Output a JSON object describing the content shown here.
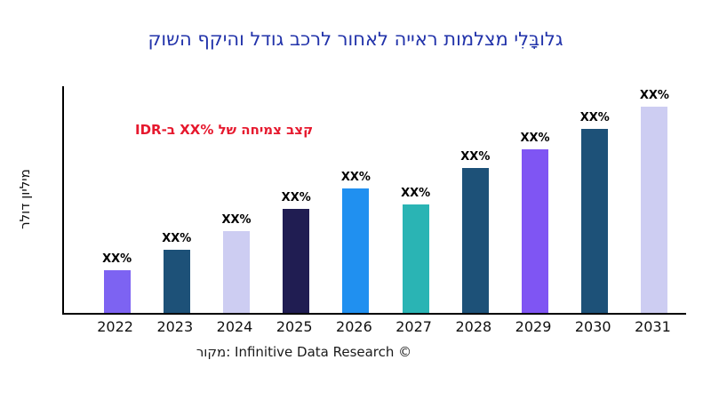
{
  "title": {
    "text": "גלובָּלִי מצלמות ראייה לאחור לרכב גודל והיקף השוק",
    "color": "#2233aa"
  },
  "annotation": {
    "text": "קצב צמיחה של %XX ב-IDR",
    "color": "#e6192e"
  },
  "y_axis_label": "מיליון דולר",
  "caption": "מקור: Infinitive Data Research ©",
  "chart_data": {
    "type": "bar",
    "title": "גלובָּלִי מצלמות ראייה לאחור לרכב גודל והיקף השוק",
    "xlabel": "",
    "ylabel": "מיליון דולר",
    "categories": [
      "2022",
      "2023",
      "2024",
      "2025",
      "2026",
      "2027",
      "2028",
      "2029",
      "2030",
      "2031"
    ],
    "values": [
      19,
      28,
      36,
      46,
      55,
      48,
      64,
      72,
      81,
      91
    ],
    "value_labels": [
      "XX%",
      "XX%",
      "XX%",
      "XX%",
      "XX%",
      "XX%",
      "XX%",
      "XX%",
      "XX%",
      "XX%"
    ],
    "bar_colors": [
      "#7d63f2",
      "#1d5178",
      "#cdcdf2",
      "#201d52",
      "#2090f0",
      "#2ab4b4",
      "#1d5178",
      "#7f55f3",
      "#1d5178",
      "#cdcdf2"
    ],
    "ylim": [
      0,
      100
    ],
    "grid": false,
    "legend": "none",
    "axis_color": "#000000"
  }
}
